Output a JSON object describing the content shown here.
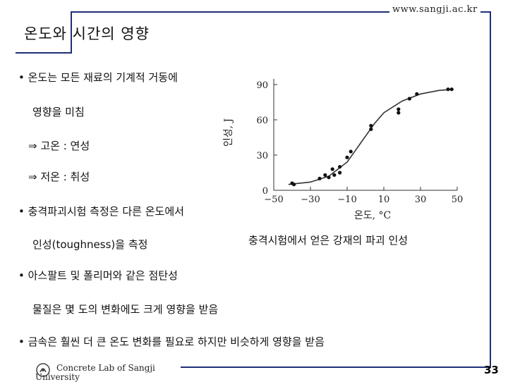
{
  "header": {
    "url": "www.sangji.ac.kr",
    "title": "온도와 시간의 영향"
  },
  "bullets": {
    "b1_line1": "• 온도는 모든 재료의 기계적 거동에",
    "b1_line2": "영향을 미침",
    "b1_line3": "⇒ 고온 : 연성",
    "b1_line4": "⇒ 저온 : 취성",
    "b2_line1": "• 충격파괴시험 측정은 다른 온도에서",
    "b2_line2": "인성(toughness)을 측정",
    "b3_line1": "• 아스팔트 및 폴리머와 같은 점탄성",
    "b3_line2": "물질은 몇 도의 변화에도 크게 영향을 받음",
    "b4_line1": "• 금속은 훨씬 더 큰 온도 변화를 필요로 하지만 비슷하게 영향을 받음"
  },
  "caption": "충격시험에서 얻은 강재의 파괴 인성",
  "footer": {
    "org_line1": "Concrete Lab of Sangji",
    "org_line2": "University",
    "page": "33"
  },
  "chart_data": {
    "type": "scatter",
    "xlabel": "온도, °C",
    "ylabel": "인성, J",
    "xlim": [
      -50,
      50
    ],
    "ylim": [
      0,
      90
    ],
    "xticks": [
      -50,
      -30,
      -10,
      10,
      30,
      50
    ],
    "xtick_labels": [
      "−50",
      "−30",
      "−10",
      "10",
      "30",
      "50"
    ],
    "yticks": [
      0,
      30,
      60,
      90
    ],
    "ytick_labels": [
      "0",
      "30",
      "60",
      "90"
    ],
    "points": [
      {
        "x": -40,
        "y": 6
      },
      {
        "x": -39,
        "y": 5
      },
      {
        "x": -25,
        "y": 10
      },
      {
        "x": -22,
        "y": 13
      },
      {
        "x": -20,
        "y": 11
      },
      {
        "x": -18,
        "y": 18
      },
      {
        "x": -17,
        "y": 13
      },
      {
        "x": -14,
        "y": 15
      },
      {
        "x": -14,
        "y": 20
      },
      {
        "x": -10,
        "y": 28
      },
      {
        "x": -8,
        "y": 33
      },
      {
        "x": 3,
        "y": 52
      },
      {
        "x": 3,
        "y": 55
      },
      {
        "x": 18,
        "y": 66
      },
      {
        "x": 18,
        "y": 69
      },
      {
        "x": 24,
        "y": 78
      },
      {
        "x": 28,
        "y": 82
      },
      {
        "x": 45,
        "y": 86
      },
      {
        "x": 47,
        "y": 86
      }
    ],
    "curve": [
      {
        "x": -42,
        "y": 5
      },
      {
        "x": -30,
        "y": 7
      },
      {
        "x": -20,
        "y": 12
      },
      {
        "x": -10,
        "y": 24
      },
      {
        "x": -5,
        "y": 35
      },
      {
        "x": 0,
        "y": 46
      },
      {
        "x": 5,
        "y": 57
      },
      {
        "x": 10,
        "y": 66
      },
      {
        "x": 20,
        "y": 76
      },
      {
        "x": 30,
        "y": 82
      },
      {
        "x": 40,
        "y": 85
      },
      {
        "x": 48,
        "y": 86
      }
    ]
  }
}
